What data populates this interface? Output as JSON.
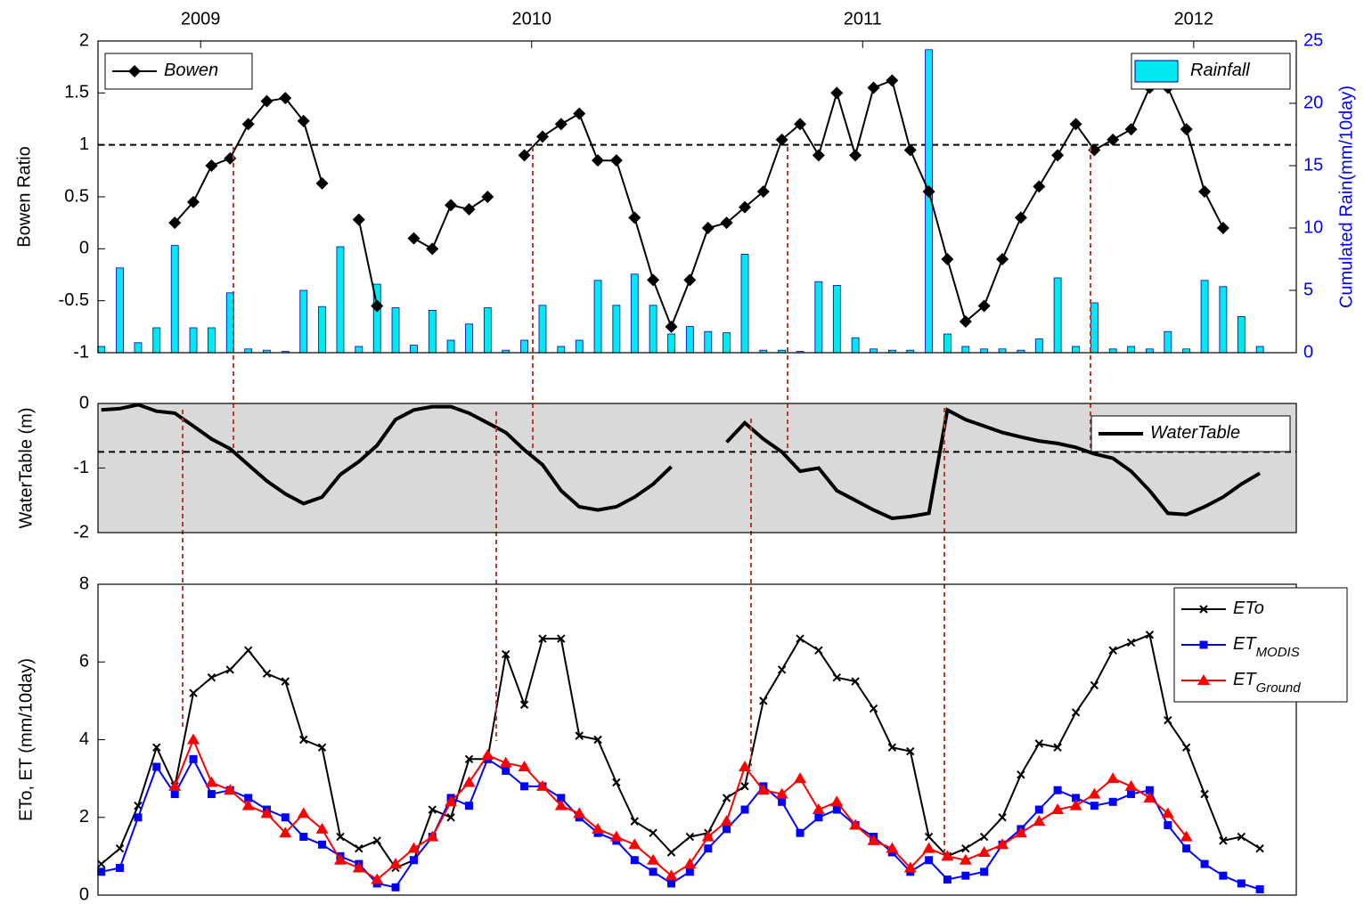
{
  "chart_data": [
    {
      "type": "line",
      "ylabel": "Bowen Ratio",
      "y2label": "Cumulated Rain(mm/10day)",
      "y2_color": "#0000ff",
      "xlim": [
        2008.69,
        2012.31
      ],
      "xticks": [
        2009,
        2010,
        2011,
        2012
      ],
      "xtick_position": "top",
      "ylim": [
        -1,
        2
      ],
      "yticks": [
        -1,
        -0.5,
        0,
        0.5,
        1,
        1.5,
        2
      ],
      "y2lim": [
        0,
        25
      ],
      "y2ticks": [
        0,
        5,
        10,
        15,
        20,
        25
      ],
      "hline": 1,
      "x": [
        2008.7,
        2008.756,
        2008.811,
        2008.867,
        2008.922,
        2008.978,
        2009.033,
        2009.089,
        2009.144,
        2009.2,
        2009.256,
        2009.311,
        2009.367,
        2009.422,
        2009.478,
        2009.533,
        2009.589,
        2009.644,
        2009.7,
        2009.756,
        2009.811,
        2009.867,
        2009.922,
        2009.978,
        2010.033,
        2010.089,
        2010.144,
        2010.2,
        2010.256,
        2010.311,
        2010.367,
        2010.422,
        2010.478,
        2010.533,
        2010.589,
        2010.644,
        2010.7,
        2010.756,
        2010.811,
        2010.867,
        2010.922,
        2010.978,
        2011.033,
        2011.089,
        2011.144,
        2011.2,
        2011.256,
        2011.311,
        2011.367,
        2011.422,
        2011.478,
        2011.533,
        2011.589,
        2011.644,
        2011.7,
        2011.756,
        2011.811,
        2011.867,
        2011.922,
        2011.978,
        2012.033,
        2012.089,
        2012.144,
        2012.2
      ],
      "series": [
        {
          "name": "Rainfall",
          "type": "bar",
          "axis": "y2",
          "color": "#00e8f0",
          "legend_loc": "upper right",
          "values": [
            0.5,
            6.8,
            0.8,
            2,
            8.6,
            2,
            2,
            4.8,
            0.3,
            0.2,
            0.1,
            5,
            3.7,
            8.5,
            0.5,
            5.5,
            3.6,
            0.6,
            3.4,
            1,
            2.3,
            3.6,
            0.2,
            1,
            3.8,
            0.5,
            1,
            5.8,
            3.8,
            6.3,
            3.8,
            1.5,
            2.1,
            1.7,
            1.6,
            7.9,
            0.2,
            0.2,
            0.1,
            5.7,
            5.4,
            1.2,
            0.3,
            0.2,
            0.2,
            24.3,
            1.5,
            0.5,
            0.3,
            0.3,
            0.2,
            1.1,
            6,
            0.5,
            4,
            0.3,
            0.5,
            0.3,
            1.7,
            0.3,
            5.8,
            5.3,
            2.9,
            0.5
          ]
        },
        {
          "name": "Bowen",
          "type": "line",
          "marker": "diamond",
          "color": "#000000",
          "legend_loc": "upper left",
          "values": [
            null,
            null,
            null,
            null,
            0.25,
            0.45,
            0.8,
            0.87,
            1.2,
            1.42,
            1.45,
            1.23,
            0.63,
            null,
            0.28,
            -0.55,
            null,
            0.1,
            0.0,
            0.42,
            0.38,
            0.5,
            null,
            0.9,
            1.08,
            1.2,
            1.3,
            0.85,
            0.85,
            0.3,
            -0.3,
            -0.75,
            -0.3,
            0.2,
            0.25,
            0.4,
            0.55,
            1.05,
            1.2,
            0.9,
            1.5,
            0.9,
            1.55,
            1.62,
            0.95,
            0.55,
            -0.1,
            -0.7,
            -0.55,
            -0.1,
            0.3,
            0.6,
            0.9,
            1.2,
            0.95,
            1.05,
            1.15,
            1.55,
            1.55,
            1.15,
            0.55,
            0.2,
            null,
            null
          ]
        }
      ]
    },
    {
      "type": "line",
      "ylabel": "WaterTable (m)",
      "background_color": "#d9d9d9",
      "xlim": [
        2008.69,
        2012.31
      ],
      "ylim": [
        -2,
        0
      ],
      "yticks": [
        -2,
        -1,
        0
      ],
      "hline": -0.75,
      "legend": "upper right",
      "x": [
        2008.7,
        2008.756,
        2008.811,
        2008.867,
        2008.922,
        2008.978,
        2009.033,
        2009.089,
        2009.144,
        2009.2,
        2009.256,
        2009.311,
        2009.367,
        2009.422,
        2009.478,
        2009.533,
        2009.589,
        2009.644,
        2009.7,
        2009.756,
        2009.811,
        2009.867,
        2009.922,
        2009.978,
        2010.033,
        2010.089,
        2010.144,
        2010.2,
        2010.256,
        2010.311,
        2010.367,
        2010.422,
        2010.478,
        2010.533,
        2010.589,
        2010.644,
        2010.7,
        2010.756,
        2010.811,
        2010.867,
        2010.922,
        2010.978,
        2011.033,
        2011.089,
        2011.144,
        2011.2,
        2011.256,
        2011.311,
        2011.367,
        2011.422,
        2011.478,
        2011.533,
        2011.589,
        2011.644,
        2011.7,
        2011.756,
        2011.811,
        2011.867,
        2011.922,
        2011.978,
        2012.033,
        2012.089,
        2012.144,
        2012.2
      ],
      "series": [
        {
          "name": "WaterTable",
          "type": "line",
          "color": "#000000",
          "values": [
            -0.1,
            -0.08,
            -0.02,
            -0.12,
            -0.15,
            -0.35,
            -0.55,
            -0.7,
            -0.95,
            -1.2,
            -1.4,
            -1.55,
            -1.45,
            -1.1,
            -0.9,
            -0.65,
            -0.25,
            -0.1,
            -0.05,
            -0.05,
            -0.15,
            -0.3,
            -0.45,
            -0.72,
            -0.95,
            -1.35,
            -1.6,
            -1.65,
            -1.6,
            -1.45,
            -1.25,
            -0.98,
            null,
            null,
            -0.6,
            -0.3,
            -0.55,
            -0.75,
            -1.05,
            -1.0,
            -1.35,
            -1.5,
            -1.65,
            -1.78,
            -1.75,
            -1.7,
            -0.1,
            -0.25,
            -0.35,
            -0.45,
            -0.52,
            -0.58,
            -0.62,
            -0.68,
            -0.78,
            -0.85,
            -1.05,
            -1.35,
            -1.7,
            -1.72,
            -1.6,
            -1.45,
            -1.25,
            -1.08
          ]
        }
      ]
    },
    {
      "type": "line",
      "ylabel": "ETo, ET (mm/10day)",
      "xlim": [
        2008.69,
        2012.31
      ],
      "ylim": [
        0,
        8
      ],
      "yticks": [
        0,
        2,
        4,
        6,
        8
      ],
      "legend": "upper right",
      "x": [
        2008.7,
        2008.756,
        2008.811,
        2008.867,
        2008.922,
        2008.978,
        2009.033,
        2009.089,
        2009.144,
        2009.2,
        2009.256,
        2009.311,
        2009.367,
        2009.422,
        2009.478,
        2009.533,
        2009.589,
        2009.644,
        2009.7,
        2009.756,
        2009.811,
        2009.867,
        2009.922,
        2009.978,
        2010.033,
        2010.089,
        2010.144,
        2010.2,
        2010.256,
        2010.311,
        2010.367,
        2010.422,
        2010.478,
        2010.533,
        2010.589,
        2010.644,
        2010.7,
        2010.756,
        2010.811,
        2010.867,
        2010.922,
        2010.978,
        2011.033,
        2011.089,
        2011.144,
        2011.2,
        2011.256,
        2011.311,
        2011.367,
        2011.422,
        2011.478,
        2011.533,
        2011.589,
        2011.644,
        2011.7,
        2011.756,
        2011.811,
        2011.867,
        2011.922,
        2011.978,
        2012.033,
        2012.089,
        2012.144,
        2012.2
      ],
      "series": [
        {
          "name": "ETo",
          "type": "line",
          "marker": "x",
          "color": "#000000",
          "values": [
            0.8,
            1.2,
            2.3,
            3.8,
            2.8,
            5.2,
            5.6,
            5.8,
            6.3,
            5.7,
            5.5,
            4.0,
            3.8,
            1.5,
            1.2,
            1.4,
            0.7,
            0.9,
            2.2,
            2.0,
            3.5,
            3.5,
            6.2,
            4.9,
            6.6,
            6.6,
            4.1,
            4.0,
            2.9,
            1.9,
            1.6,
            1.1,
            1.5,
            1.6,
            2.5,
            2.8,
            5.0,
            5.8,
            6.6,
            6.3,
            5.6,
            5.5,
            4.8,
            3.8,
            3.7,
            1.5,
            1.0,
            1.2,
            1.5,
            2.0,
            3.1,
            3.9,
            3.8,
            4.7,
            5.4,
            6.3,
            6.5,
            6.7,
            4.5,
            3.8,
            2.6,
            1.4,
            1.5,
            1.2
          ]
        },
        {
          "name": "ET",
          "subscript": "MODIS",
          "type": "line",
          "marker": "square",
          "color": "#0000ff",
          "values": [
            0.6,
            0.7,
            2.0,
            3.3,
            2.6,
            3.5,
            2.6,
            2.7,
            2.5,
            2.2,
            2.0,
            1.5,
            1.3,
            1.0,
            0.8,
            0.3,
            0.2,
            0.9,
            1.5,
            2.5,
            2.3,
            3.5,
            3.2,
            2.8,
            2.8,
            2.5,
            2.0,
            1.6,
            1.4,
            0.9,
            0.6,
            0.3,
            0.6,
            1.2,
            1.7,
            2.2,
            2.8,
            2.4,
            1.6,
            2.0,
            2.2,
            1.8,
            1.5,
            1.1,
            0.6,
            0.9,
            0.4,
            0.5,
            0.6,
            1.3,
            1.7,
            2.2,
            2.7,
            2.5,
            2.3,
            2.4,
            2.6,
            2.7,
            1.8,
            1.2,
            0.8,
            0.5,
            0.3,
            0.15
          ]
        },
        {
          "name": "ET",
          "subscript": "Ground",
          "type": "line",
          "marker": "triangle",
          "color": "#ff0000",
          "values": [
            null,
            null,
            null,
            null,
            2.8,
            4.0,
            2.9,
            2.7,
            2.3,
            2.1,
            1.6,
            2.1,
            1.7,
            0.9,
            0.7,
            0.4,
            0.8,
            1.2,
            1.5,
            2.4,
            2.9,
            3.6,
            3.4,
            3.3,
            2.8,
            2.3,
            2.1,
            1.7,
            1.5,
            1.3,
            0.9,
            0.5,
            0.8,
            1.5,
            1.9,
            3.3,
            2.7,
            2.6,
            3.0,
            2.2,
            2.4,
            1.8,
            1.4,
            1.2,
            0.7,
            1.2,
            1.0,
            0.9,
            1.1,
            1.3,
            1.6,
            1.9,
            2.2,
            2.3,
            2.6,
            3.0,
            2.8,
            2.5,
            2.1,
            1.5,
            null,
            null,
            null,
            null
          ]
        }
      ]
    }
  ]
}
